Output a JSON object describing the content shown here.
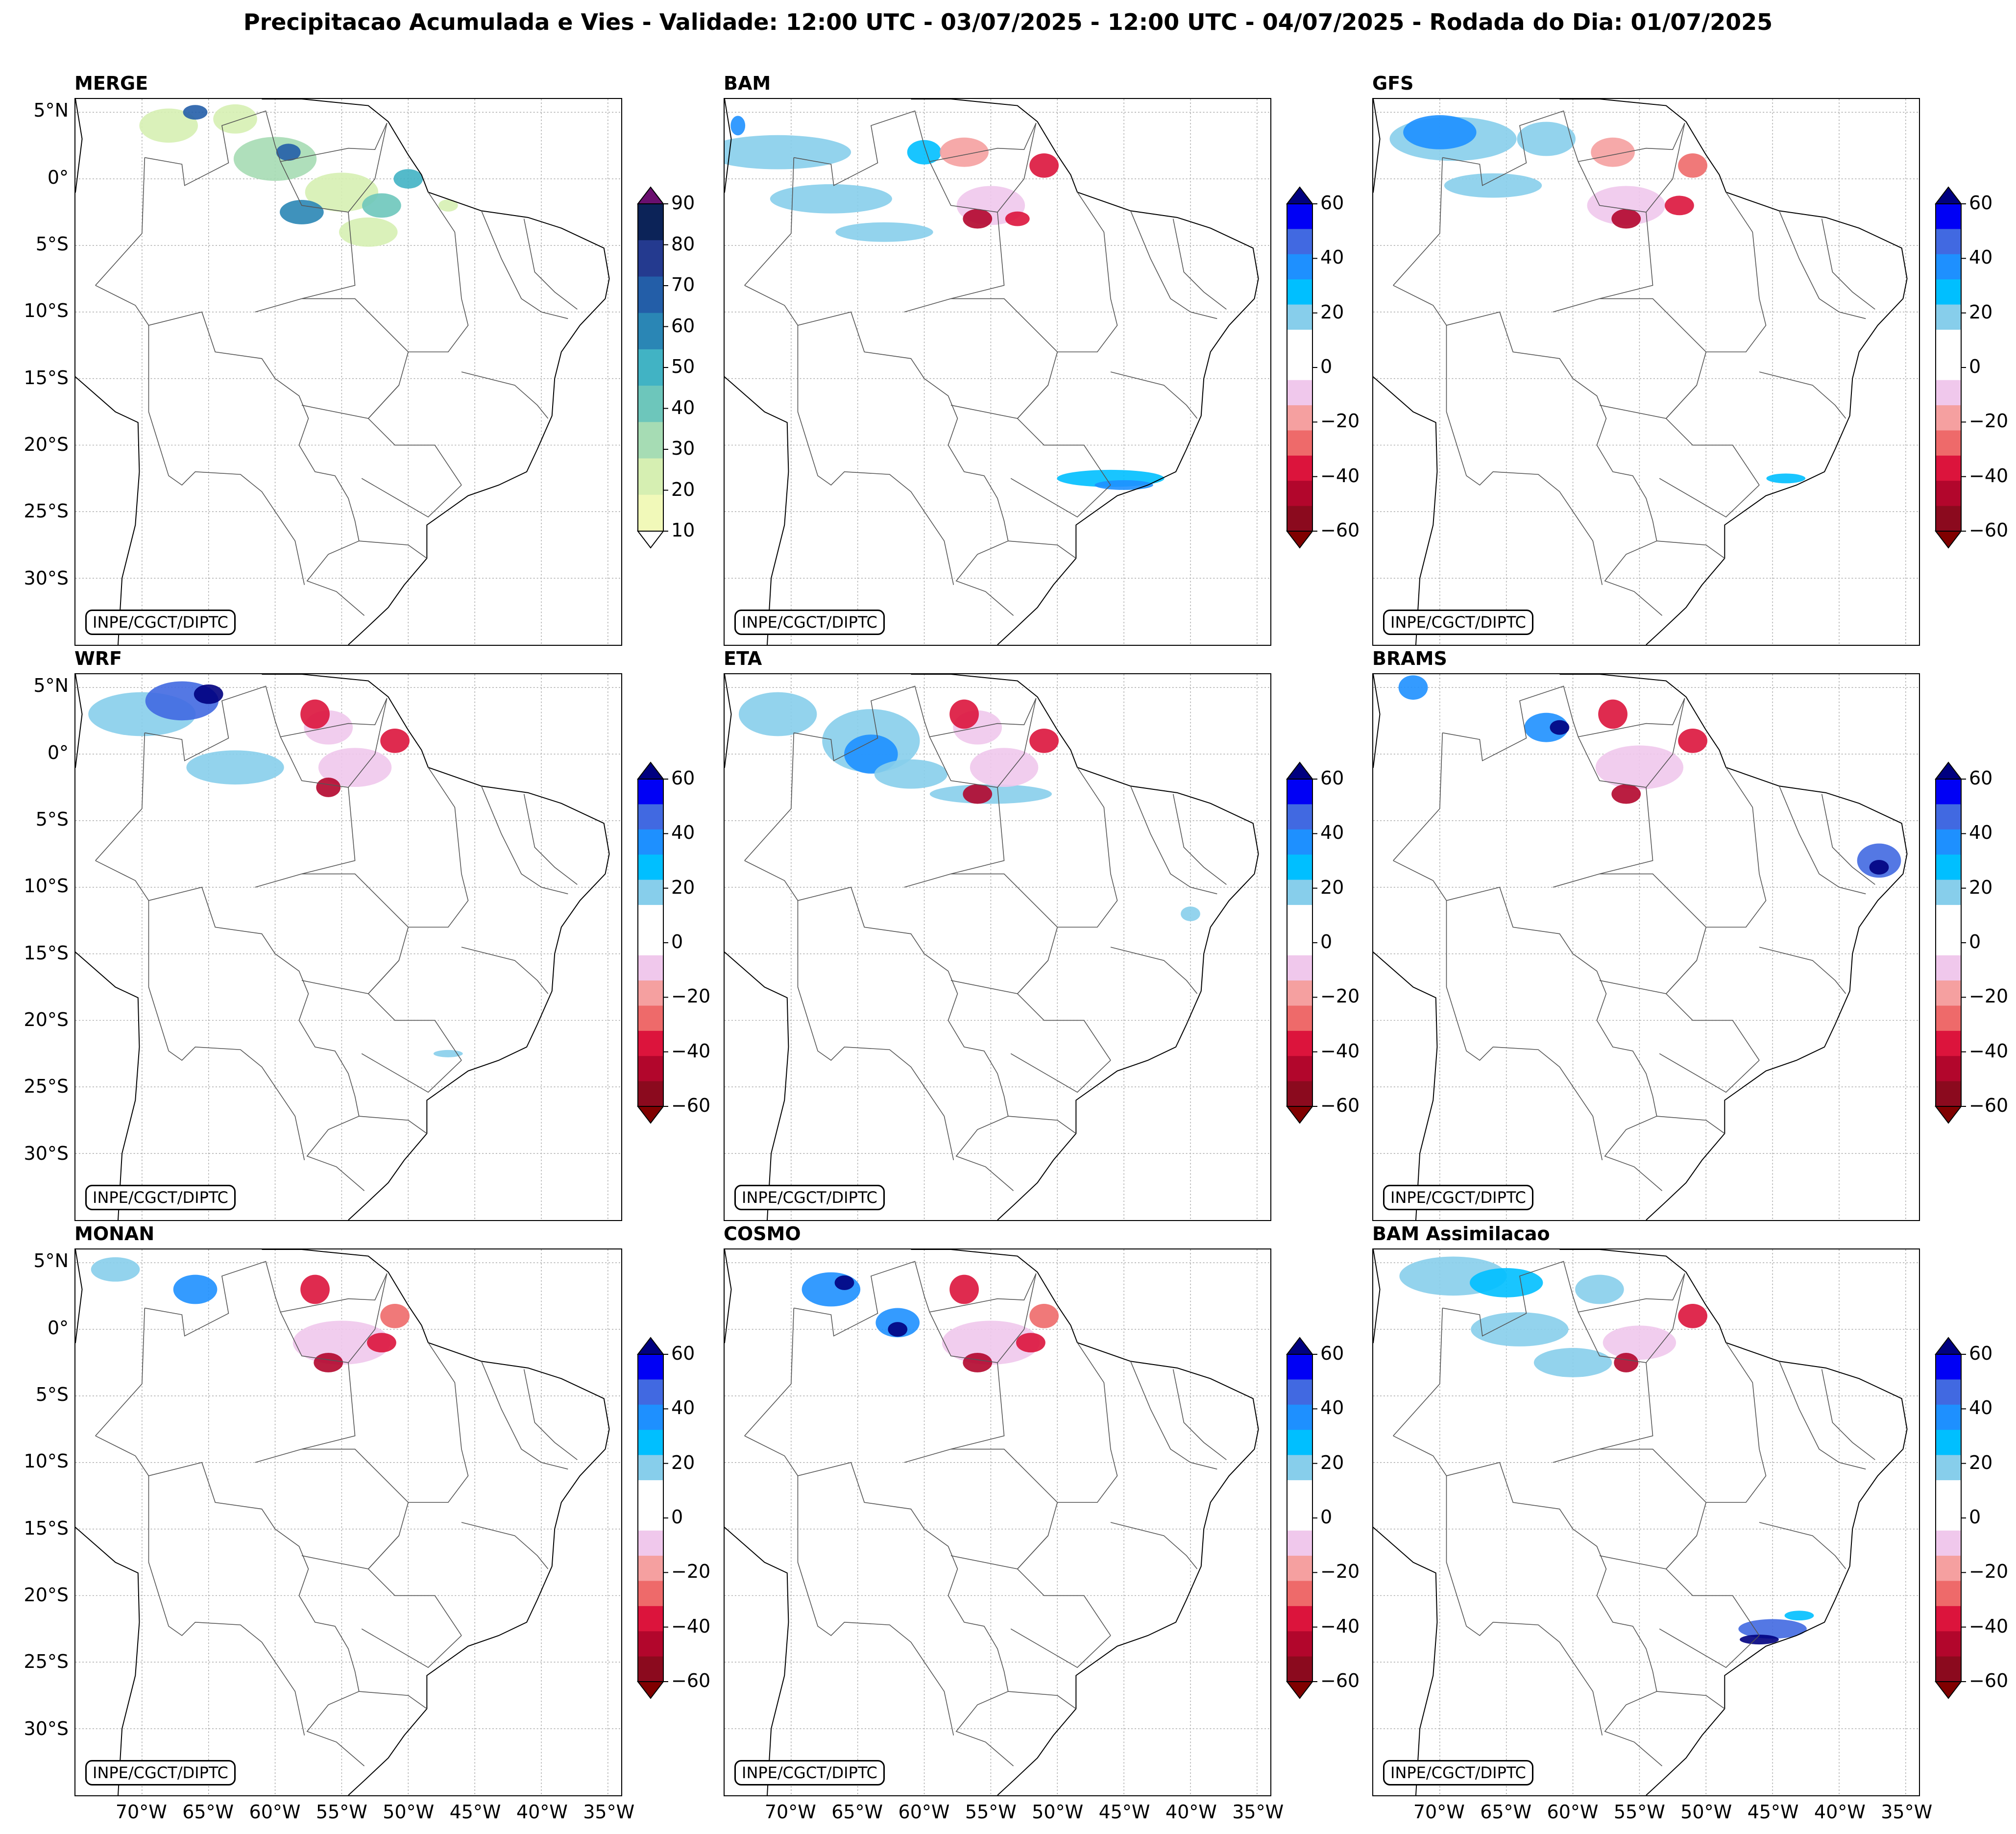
{
  "title": "Precipitacao Acumulada e Vies - Validade: 12:00 UTC - 03/07/2025 - 12:00 UTC - 04/07/2025 - Rodada do Dia: 01/07/2025",
  "credit": "INPE/CGCT/DIPTC",
  "lat_labels": [
    "5°N",
    "0°",
    "5°S",
    "10°S",
    "15°S",
    "20°S",
    "25°S",
    "30°S"
  ],
  "lon_labels": [
    "70°W",
    "65°W",
    "60°W",
    "55°W",
    "50°W",
    "45°W",
    "40°W",
    "35°W"
  ],
  "panels": [
    {
      "name": "MERGE",
      "colorbar": "precip"
    },
    {
      "name": "BAM",
      "colorbar": "bias"
    },
    {
      "name": "GFS",
      "colorbar": "bias"
    },
    {
      "name": "WRF",
      "colorbar": "bias"
    },
    {
      "name": "ETA",
      "colorbar": "bias"
    },
    {
      "name": "BRAMS",
      "colorbar": "bias"
    },
    {
      "name": "MONAN",
      "colorbar": "bias"
    },
    {
      "name": "COSMO",
      "colorbar": "bias"
    },
    {
      "name": "BAM Assimilacao",
      "colorbar": "bias"
    }
  ],
  "colorbars": {
    "precip": {
      "labels": [
        "90",
        "80",
        "70",
        "60",
        "50",
        "40",
        "30",
        "20",
        "10"
      ],
      "colors": [
        "#0c2358",
        "#243a8f",
        "#235ea8",
        "#2a86b5",
        "#41b3c4",
        "#6dc6bb",
        "#a6dcb4",
        "#d6efb2",
        "#f1f9b9"
      ],
      "extend_max_color": "#6a0f6f",
      "extend_min_color": "#ffffff"
    },
    "bias": {
      "labels": [
        "60",
        "40",
        "20",
        "0",
        "−20",
        "−40",
        "−60"
      ],
      "colors": [
        "#0000f5",
        "#4169e1",
        "#1e90ff",
        "#00bfff",
        "#87ceeb",
        "#ffffff",
        "#ffffff",
        "#f0c8ec",
        "#f5a0a0",
        "#ee6a6a",
        "#dc143c",
        "#b2062c",
        "#8b0a1e"
      ],
      "extend_max_color": "#000080",
      "extend_min_color": "#800000"
    }
  }
}
